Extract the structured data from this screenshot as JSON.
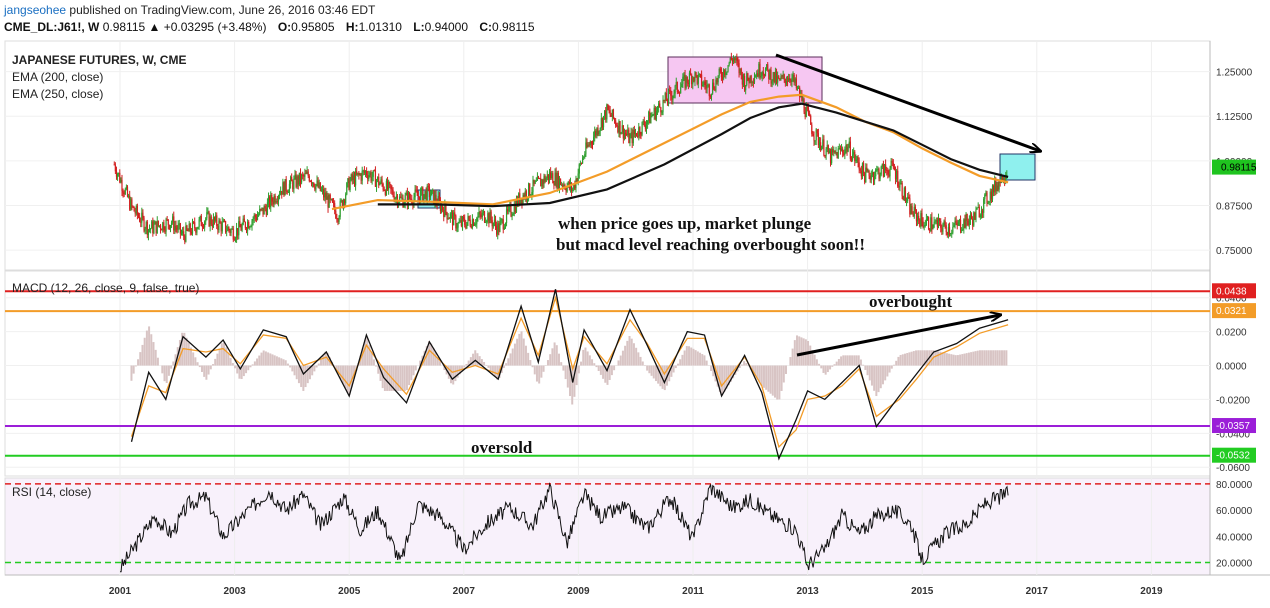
{
  "header": {
    "user": "jangseohee",
    "published": "published on TradingView.com, June 26, 2016 03:46 EDT",
    "symbol": "CME_DL:J61!, W",
    "change": "0.98115 ▲ +0.03295 (+3.48%)",
    "o_label": "O:",
    "o_val": "0.95805",
    "h_label": "H:",
    "h_val": "1.01310",
    "l_label": "L:",
    "l_val": "0.94000",
    "c_label": "C:",
    "c_val": "0.98115"
  },
  "colors": {
    "price_up": "#2e9e2e",
    "price_down": "#d21f1f",
    "ema200": "#111111",
    "ema250": "#f39c28",
    "macd": "#111111",
    "signal": "#f39c28",
    "hist": "#d8c4c4",
    "red_line": "#e02020",
    "orange_line": "#f39c28",
    "purple_line": "#9b1ed8",
    "green_line": "#22cc22",
    "rsi_bg": "#f8f1fb"
  },
  "chart_data": [
    {
      "type": "line",
      "title": "JAPANESE FUTURES, W, CME",
      "legend": [
        "EMA (200, close)",
        "EMA (250, close)"
      ],
      "y_ticks": [
        "1.25000",
        "1.12500",
        "1.00000",
        "0.87500",
        "0.75000"
      ],
      "last_price_label": "0.98115",
      "ylim": [
        0.7,
        1.33
      ],
      "x": [
        2000.9,
        2001.2,
        2001.5,
        2001.9,
        2002.1,
        2002.5,
        2003.0,
        2003.5,
        2003.8,
        2004.3,
        2004.8,
        2005.0,
        2005.3,
        2005.9,
        2006.4,
        2006.9,
        2007.4,
        2007.6,
        2008.0,
        2008.5,
        2008.9,
        2009.1,
        2009.5,
        2009.9,
        2010.3,
        2010.7,
        2011.0,
        2011.3,
        2011.7,
        2011.9,
        2012.2,
        2012.5,
        2012.7,
        2012.9,
        2013.1,
        2013.4,
        2013.7,
        2014.0,
        2014.5,
        2014.8,
        2015.0,
        2015.5,
        2015.9,
        2016.2,
        2016.5
      ],
      "price": [
        0.99,
        0.87,
        0.81,
        0.83,
        0.79,
        0.84,
        0.8,
        0.86,
        0.92,
        0.96,
        0.85,
        0.94,
        0.97,
        0.89,
        0.91,
        0.82,
        0.85,
        0.81,
        0.9,
        0.96,
        0.92,
        1.02,
        1.14,
        1.06,
        1.13,
        1.2,
        1.24,
        1.2,
        1.29,
        1.22,
        1.26,
        1.22,
        1.24,
        1.17,
        1.08,
        1.01,
        1.04,
        0.96,
        0.98,
        0.86,
        0.83,
        0.81,
        0.84,
        0.91,
        0.98
      ],
      "ema200_x": [
        2005.5,
        2006.5,
        2007.5,
        2008.5,
        2009.5,
        2010.5,
        2011.5,
        2012.0,
        2012.5,
        2012.9,
        2013.5,
        2014.0,
        2014.5,
        2015.0,
        2015.5,
        2016.0,
        2016.5
      ],
      "ema200": [
        0.878,
        0.878,
        0.873,
        0.882,
        0.92,
        0.99,
        1.075,
        1.12,
        1.15,
        1.16,
        1.135,
        1.11,
        1.085,
        1.045,
        1.005,
        0.975,
        0.955
      ],
      "ema250_x": [
        2004.7,
        2005.5,
        2006.5,
        2007.5,
        2008.5,
        2009.5,
        2010.5,
        2011.5,
        2012.0,
        2012.5,
        2012.9,
        2013.5,
        2014.0,
        2014.5,
        2015.0,
        2015.5,
        2016.0,
        2016.5
      ],
      "ema250": [
        0.865,
        0.89,
        0.885,
        0.878,
        0.91,
        0.97,
        1.05,
        1.13,
        1.165,
        1.18,
        1.185,
        1.15,
        1.11,
        1.08,
        1.035,
        0.995,
        0.958,
        0.94
      ]
    },
    {
      "type": "line",
      "title": "MACD (12, 26, close, 9, false, true)",
      "y_ticks": [
        "0.0400",
        "0.0200",
        "0.0000",
        "-0.0200",
        "-0.0400",
        "-0.0600"
      ],
      "ylim": [
        -0.064,
        0.054
      ],
      "levels": [
        {
          "value": 0.0438,
          "label": "0.0438"
        },
        {
          "value": 0.0321,
          "label": "0.0321"
        },
        {
          "value": -0.0357,
          "label": "-0.0357"
        },
        {
          "value": -0.0532,
          "label": "-0.0532"
        }
      ],
      "x": [
        2001.2,
        2001.5,
        2001.8,
        2002.1,
        2002.5,
        2002.8,
        2003.1,
        2003.5,
        2003.9,
        2004.2,
        2004.6,
        2005.0,
        2005.3,
        2005.6,
        2006.0,
        2006.4,
        2006.8,
        2007.2,
        2007.6,
        2008.0,
        2008.3,
        2008.6,
        2008.9,
        2009.1,
        2009.5,
        2009.9,
        2010.2,
        2010.5,
        2010.9,
        2011.2,
        2011.5,
        2011.9,
        2012.2,
        2012.5,
        2012.8,
        2013.0,
        2013.3,
        2013.6,
        2013.9,
        2014.2,
        2014.6,
        2014.9,
        2015.2,
        2015.6,
        2016.0,
        2016.5
      ],
      "macd": [
        -0.045,
        -0.004,
        -0.02,
        0.017,
        0.005,
        0.015,
        -0.002,
        0.021,
        0.017,
        -0.005,
        0.008,
        -0.018,
        0.018,
        -0.007,
        -0.022,
        0.014,
        -0.008,
        0.003,
        -0.008,
        0.035,
        0.002,
        0.045,
        -0.01,
        0.021,
        -0.003,
        0.033,
        0.012,
        -0.01,
        0.02,
        0.018,
        -0.018,
        0.006,
        -0.016,
        -0.055,
        -0.032,
        -0.015,
        -0.02,
        -0.01,
        0.0,
        -0.036,
        -0.018,
        -0.005,
        0.008,
        0.013,
        0.022,
        0.027
      ],
      "signal": [
        -0.042,
        -0.012,
        -0.016,
        0.01,
        0.008,
        0.01,
        0.001,
        0.018,
        0.016,
        0.0,
        0.005,
        -0.012,
        0.012,
        -0.002,
        -0.017,
        0.009,
        -0.004,
        0.0,
        -0.005,
        0.028,
        0.006,
        0.04,
        -0.002,
        0.017,
        0.001,
        0.027,
        0.013,
        -0.005,
        0.016,
        0.016,
        -0.012,
        0.005,
        -0.012,
        -0.048,
        -0.038,
        -0.02,
        -0.018,
        -0.012,
        -0.002,
        -0.03,
        -0.02,
        -0.008,
        0.005,
        0.011,
        0.019,
        0.024
      ]
    },
    {
      "type": "line",
      "title": "RSI (14, close)",
      "y_ticks": [
        "80.0000",
        "60.0000",
        "40.0000",
        "20.0000"
      ],
      "ylim": [
        12,
        83
      ],
      "levels": [
        {
          "value": 80
        },
        {
          "value": 20
        }
      ],
      "x": [
        2001.0,
        2001.3,
        2001.6,
        2001.9,
        2002.2,
        2002.5,
        2002.8,
        2003.2,
        2003.6,
        2003.9,
        2004.2,
        2004.5,
        2004.9,
        2005.2,
        2005.5,
        2005.9,
        2006.2,
        2006.6,
        2007.0,
        2007.4,
        2007.8,
        2008.2,
        2008.5,
        2008.8,
        2009.1,
        2009.4,
        2009.8,
        2010.2,
        2010.6,
        2011.0,
        2011.3,
        2011.7,
        2012.0,
        2012.4,
        2012.8,
        2013.0,
        2013.3,
        2013.6,
        2013.9,
        2014.2,
        2014.5,
        2014.8,
        2015.0,
        2015.4,
        2015.8,
        2016.1,
        2016.5
      ],
      "rsi": [
        15,
        35,
        55,
        42,
        65,
        70,
        40,
        58,
        75,
        60,
        72,
        48,
        70,
        45,
        60,
        20,
        65,
        55,
        30,
        50,
        62,
        48,
        77,
        35,
        72,
        55,
        62,
        46,
        70,
        38,
        78,
        62,
        68,
        55,
        45,
        18,
        30,
        56,
        42,
        55,
        60,
        50,
        22,
        42,
        50,
        65,
        73
      ]
    }
  ],
  "x_axis": {
    "labels": [
      "2001",
      "2003",
      "2005",
      "2007",
      "2009",
      "2011",
      "2013",
      "2015",
      "2017",
      "2019"
    ],
    "values": [
      2001,
      2003,
      2005,
      2007,
      2009,
      2011,
      2013,
      2015,
      2017,
      2019
    ]
  },
  "annotations": {
    "price_note_line1": "when price goes up, market plunge",
    "price_note_line2": "but macd level reaching overbought soon!!",
    "overbought": "overbought",
    "oversold": "oversold"
  }
}
